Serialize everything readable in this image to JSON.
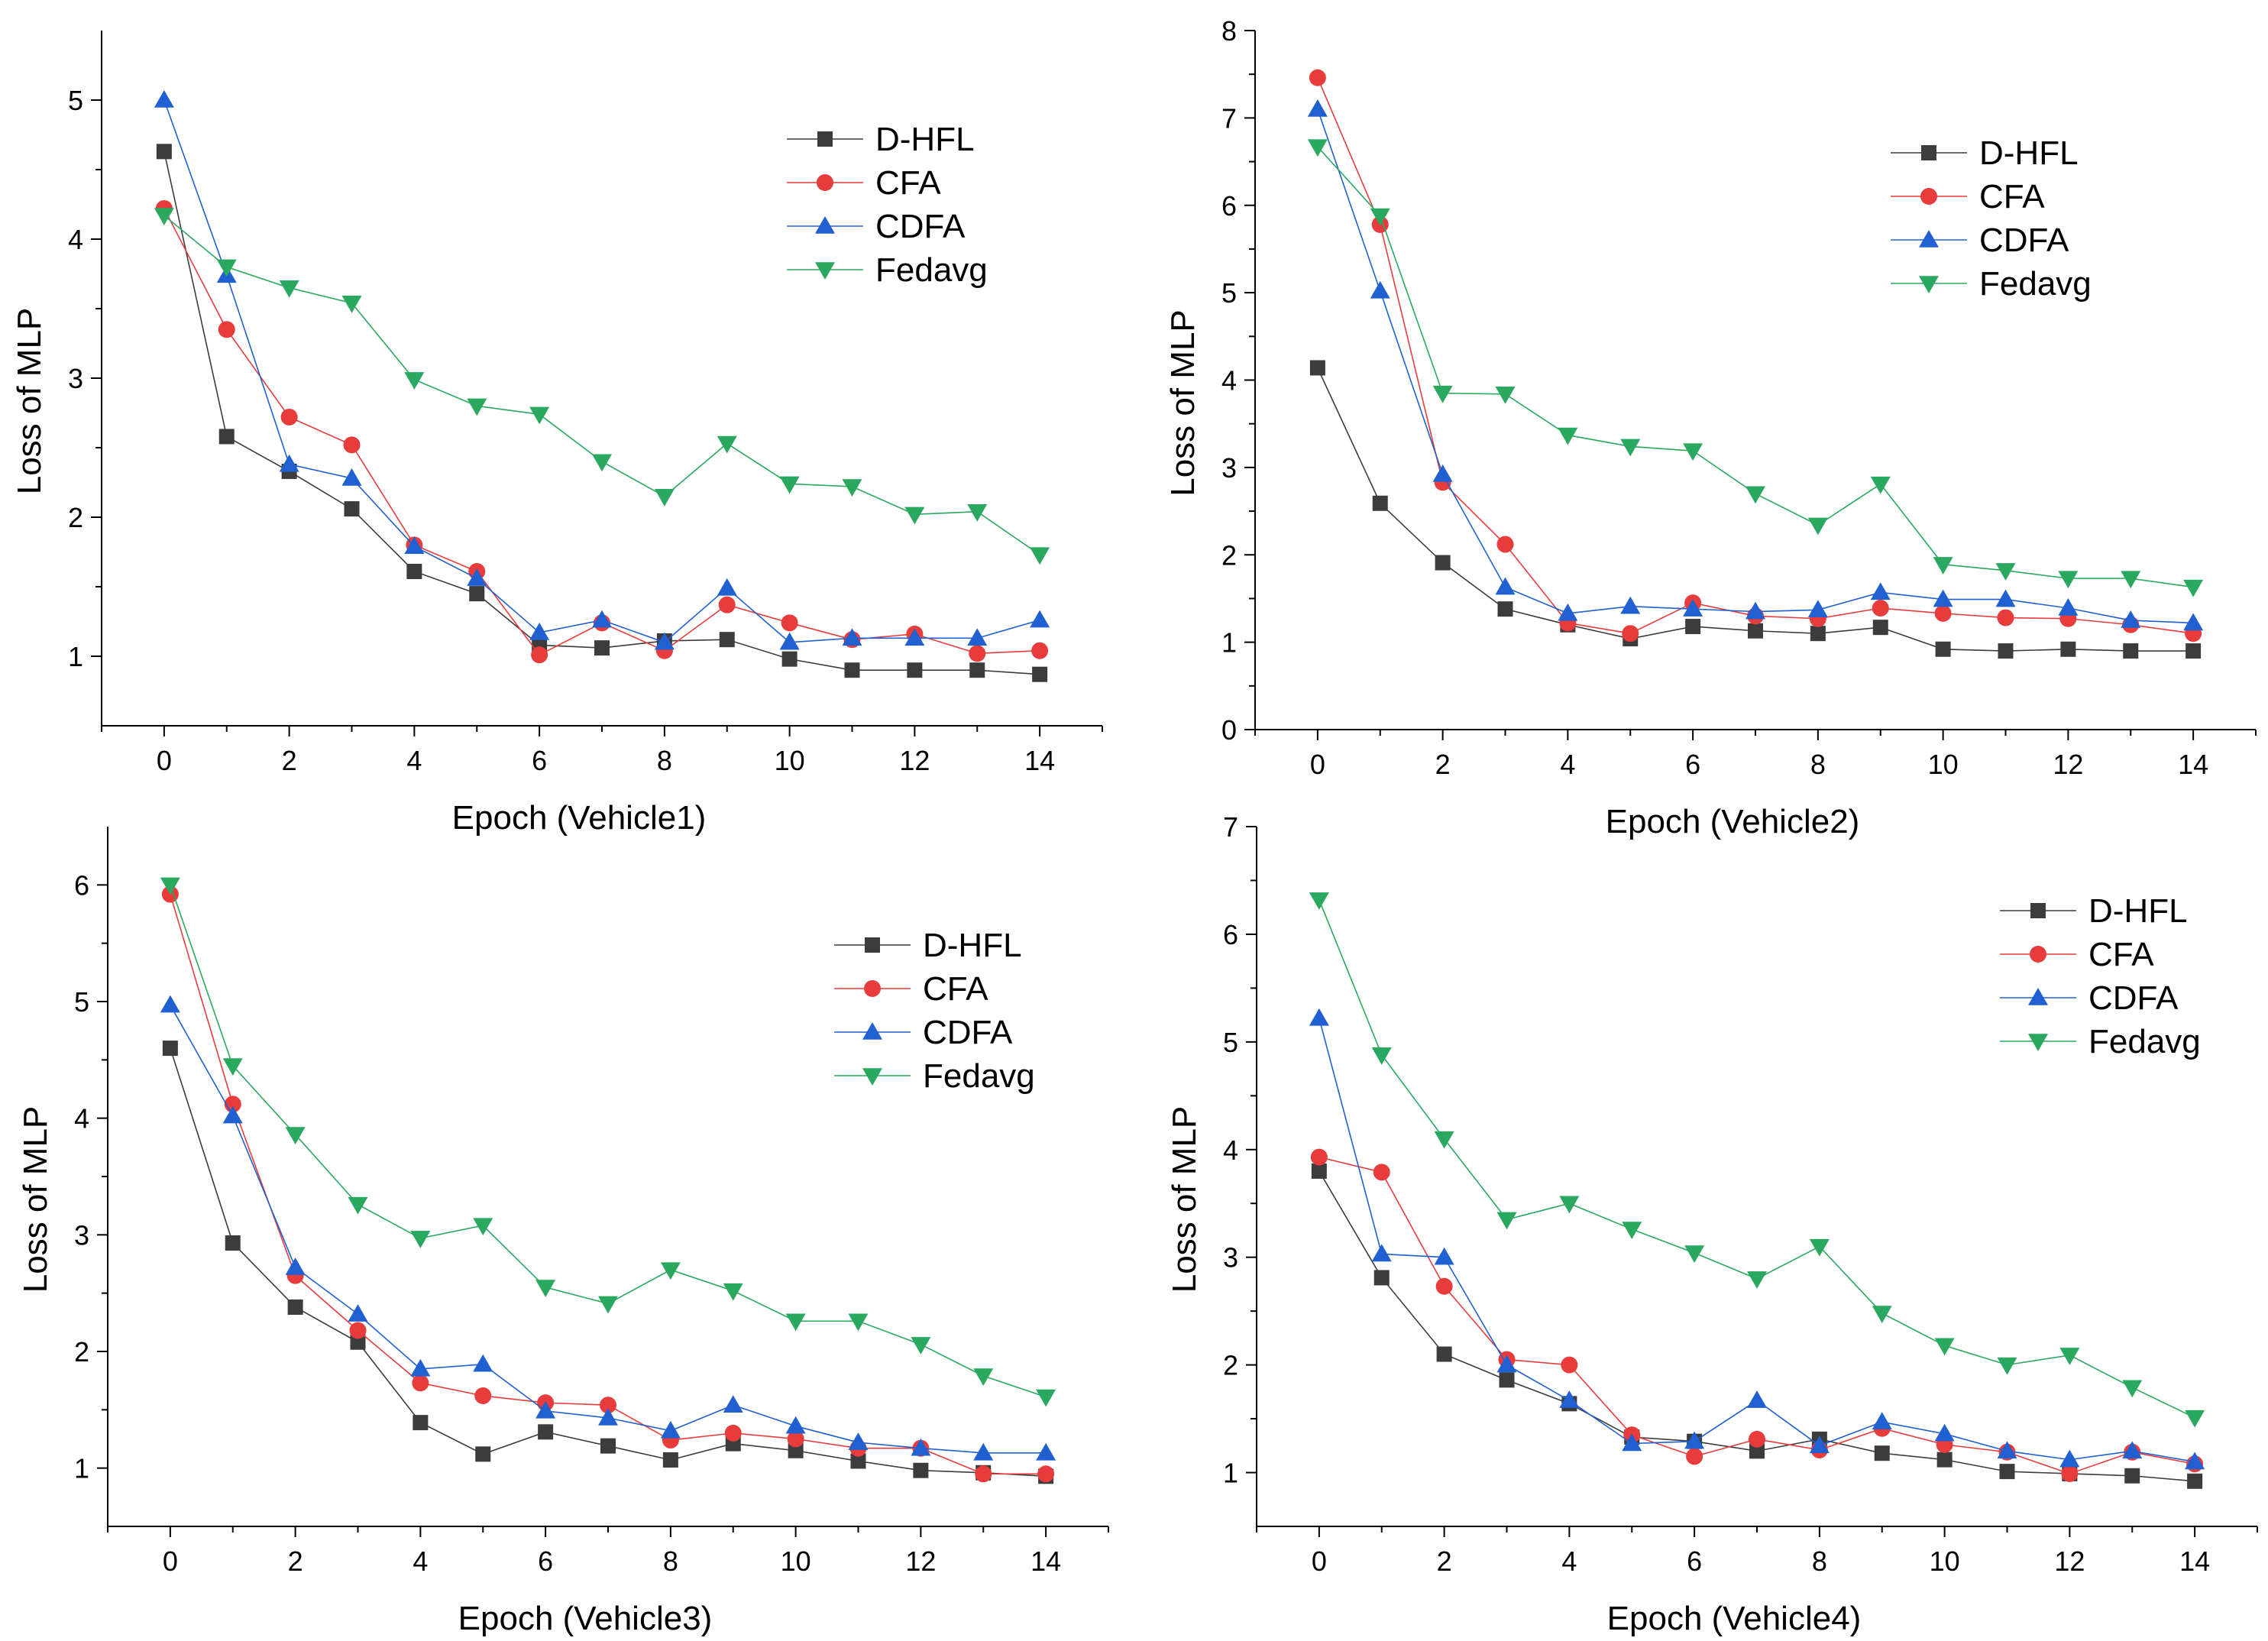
{
  "colors": {
    "D-HFL": "#3c3c3c",
    "CFA": "#e83c3c",
    "CDFA": "#2060d0",
    "Fedavg": "#2aa860"
  },
  "markers": {
    "D-HFL": "square",
    "CFA": "circle",
    "CDFA": "triangle-up",
    "Fedavg": "triangle-down"
  },
  "chart_data": [
    {
      "type": "line",
      "title": "",
      "xlabel": "Epoch (Vehicle1)",
      "ylabel": "Loss of MLP",
      "xlim": [
        -1,
        15
      ],
      "ylim": [
        0.5,
        5.5
      ],
      "xticks": [
        0,
        2,
        4,
        6,
        8,
        10,
        12,
        14
      ],
      "yticks": [
        1,
        2,
        3,
        4,
        5
      ],
      "legend_position": "top-right",
      "x": [
        0,
        1,
        2,
        3,
        4,
        5,
        6,
        7,
        8,
        9,
        10,
        11,
        12,
        13,
        14
      ],
      "series": [
        {
          "name": "D-HFL",
          "values": [
            4.63,
            2.58,
            2.33,
            2.06,
            1.61,
            1.45,
            1.08,
            1.06,
            1.11,
            1.12,
            0.98,
            0.9,
            0.9,
            0.9,
            0.87
          ]
        },
        {
          "name": "CFA",
          "values": [
            4.22,
            3.35,
            2.72,
            2.52,
            1.8,
            1.61,
            1.01,
            1.24,
            1.04,
            1.37,
            1.24,
            1.12,
            1.16,
            1.02,
            1.04
          ]
        },
        {
          "name": "CDFA",
          "values": [
            5.0,
            3.74,
            2.38,
            2.28,
            1.79,
            1.56,
            1.17,
            1.26,
            1.1,
            1.49,
            1.1,
            1.13,
            1.13,
            1.13,
            1.26
          ]
        },
        {
          "name": "Fedavg",
          "values": [
            4.17,
            3.8,
            3.65,
            3.54,
            2.99,
            2.8,
            2.74,
            2.4,
            2.15,
            2.53,
            2.24,
            2.22,
            2.02,
            2.04,
            1.73
          ]
        }
      ]
    },
    {
      "type": "line",
      "title": "",
      "xlabel": "Epoch (Vehicle2)",
      "ylabel": "Loss of MLP",
      "xlim": [
        -1,
        15
      ],
      "ylim": [
        0,
        8
      ],
      "xticks": [
        0,
        2,
        4,
        6,
        8,
        10,
        12,
        14
      ],
      "yticks": [
        0,
        1,
        2,
        3,
        4,
        5,
        6,
        7,
        8
      ],
      "legend_position": "top-right",
      "x": [
        0,
        1,
        2,
        3,
        4,
        5,
        6,
        7,
        8,
        9,
        10,
        11,
        12,
        13,
        14
      ],
      "series": [
        {
          "name": "D-HFL",
          "values": [
            4.14,
            2.59,
            1.91,
            1.38,
            1.2,
            1.04,
            1.18,
            1.13,
            1.1,
            1.17,
            0.92,
            0.9,
            0.92,
            0.9,
            0.9
          ]
        },
        {
          "name": "CFA",
          "values": [
            7.46,
            5.78,
            2.83,
            2.12,
            1.22,
            1.1,
            1.45,
            1.3,
            1.27,
            1.39,
            1.33,
            1.28,
            1.27,
            1.2,
            1.1
          ]
        },
        {
          "name": "CDFA",
          "values": [
            7.1,
            5.02,
            2.92,
            1.63,
            1.33,
            1.41,
            1.38,
            1.35,
            1.37,
            1.57,
            1.49,
            1.49,
            1.39,
            1.25,
            1.22
          ]
        },
        {
          "name": "Fedavg",
          "values": [
            6.67,
            5.88,
            3.85,
            3.84,
            3.37,
            3.24,
            3.19,
            2.7,
            2.34,
            2.81,
            1.89,
            1.82,
            1.73,
            1.73,
            1.63
          ]
        }
      ]
    },
    {
      "type": "line",
      "title": "",
      "xlabel": "Epoch (Vehicle3)",
      "ylabel": "Loss of MLP",
      "xlim": [
        -1,
        15
      ],
      "ylim": [
        0.5,
        6.5
      ],
      "xticks": [
        0,
        2,
        4,
        6,
        8,
        10,
        12,
        14
      ],
      "yticks": [
        1,
        2,
        3,
        4,
        5,
        6
      ],
      "legend_position": "top-right",
      "x": [
        0,
        1,
        2,
        3,
        4,
        5,
        6,
        7,
        8,
        9,
        10,
        11,
        12,
        13,
        14
      ],
      "series": [
        {
          "name": "D-HFL",
          "values": [
            4.6,
            2.93,
            2.38,
            2.08,
            1.39,
            1.12,
            1.31,
            1.19,
            1.07,
            1.21,
            1.15,
            1.06,
            0.98,
            0.96,
            0.93
          ]
        },
        {
          "name": "CFA",
          "values": [
            5.92,
            4.12,
            2.65,
            2.18,
            1.73,
            1.62,
            1.56,
            1.54,
            1.24,
            1.3,
            1.25,
            1.17,
            1.17,
            0.95,
            0.95
          ]
        },
        {
          "name": "CDFA",
          "values": [
            4.97,
            4.02,
            2.72,
            2.32,
            1.85,
            1.89,
            1.49,
            1.43,
            1.32,
            1.54,
            1.36,
            1.22,
            1.17,
            1.13,
            1.13
          ]
        },
        {
          "name": "Fedavg",
          "values": [
            6.0,
            4.45,
            3.86,
            3.26,
            2.97,
            3.08,
            2.55,
            2.41,
            2.7,
            2.52,
            2.26,
            2.26,
            2.06,
            1.79,
            1.61
          ]
        }
      ]
    },
    {
      "type": "line",
      "title": "",
      "xlabel": "Epoch (Vehicle4)",
      "ylabel": "Loss of MLP",
      "xlim": [
        -1,
        15
      ],
      "ylim": [
        0.5,
        7
      ],
      "xticks": [
        0,
        2,
        4,
        6,
        8,
        10,
        12,
        14
      ],
      "yticks": [
        1,
        2,
        3,
        4,
        5,
        6,
        7
      ],
      "legend_position": "top-right",
      "x": [
        0,
        1,
        2,
        3,
        4,
        5,
        6,
        7,
        8,
        9,
        10,
        11,
        12,
        13,
        14
      ],
      "series": [
        {
          "name": "D-HFL",
          "values": [
            3.8,
            2.81,
            2.1,
            1.86,
            1.64,
            1.33,
            1.29,
            1.2,
            1.31,
            1.18,
            1.12,
            1.01,
            0.99,
            0.97,
            0.92
          ]
        },
        {
          "name": "CFA",
          "values": [
            3.93,
            3.79,
            2.73,
            2.05,
            2.0,
            1.35,
            1.15,
            1.31,
            1.21,
            1.41,
            1.26,
            1.19,
            0.99,
            1.19,
            1.08
          ]
        },
        {
          "name": "CDFA",
          "values": [
            5.22,
            3.03,
            3.0,
            2.0,
            1.67,
            1.27,
            1.29,
            1.67,
            1.25,
            1.47,
            1.36,
            1.2,
            1.12,
            1.2,
            1.1
          ]
        },
        {
          "name": "Fedavg",
          "values": [
            6.32,
            4.88,
            4.1,
            3.35,
            3.5,
            3.26,
            3.04,
            2.8,
            3.1,
            2.48,
            2.18,
            2.0,
            2.09,
            1.79,
            1.51
          ]
        }
      ]
    }
  ]
}
